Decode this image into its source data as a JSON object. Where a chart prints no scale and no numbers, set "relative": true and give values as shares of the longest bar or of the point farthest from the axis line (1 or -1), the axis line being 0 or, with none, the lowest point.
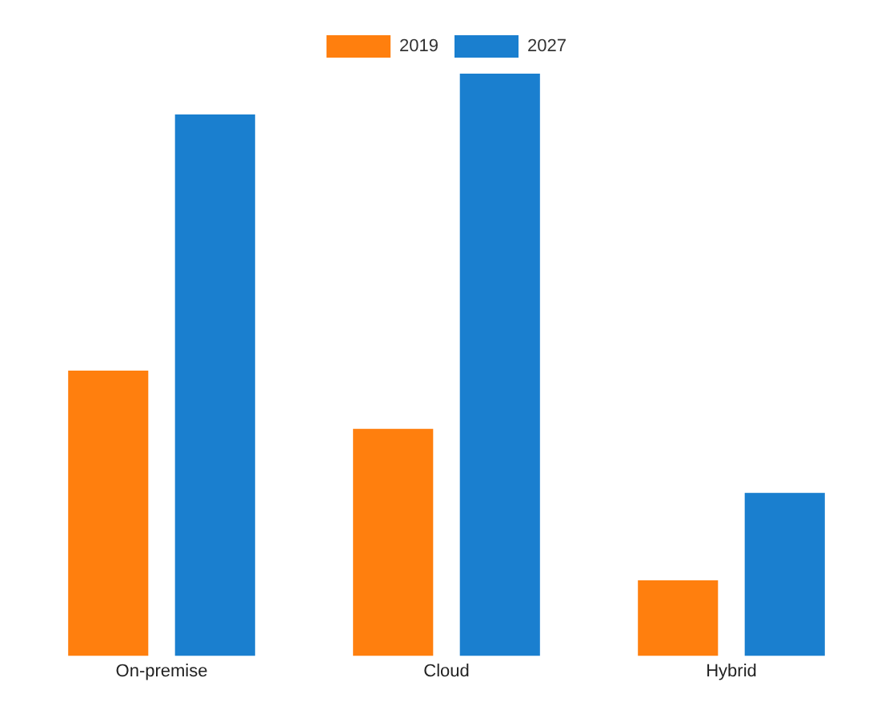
{
  "chart_data": {
    "type": "bar",
    "relative": true,
    "categories": [
      "On-premise",
      "Cloud",
      "Hybrid"
    ],
    "series": [
      {
        "name": "2019",
        "color": "#ff7f0e",
        "values": [
          0.49,
          0.39,
          0.13
        ]
      },
      {
        "name": "2027",
        "color": "#1a7fcf",
        "values": [
          0.93,
          1,
          0.28
        ]
      }
    ],
    "legend": "top",
    "grid": false
  }
}
